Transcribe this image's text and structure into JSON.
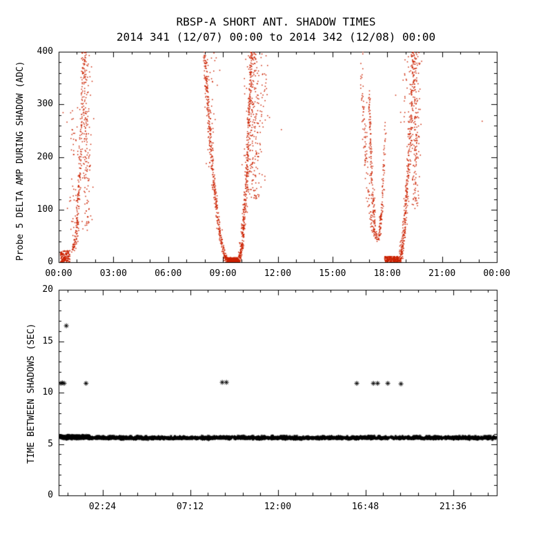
{
  "header": {
    "title": "RBSP-A SHORT ANT. SHADOW TIMES",
    "subtitle": "2014 341 (12/07) 00:00 to 2014 342 (12/08) 00:00"
  },
  "colors": {
    "background": "#ffffff",
    "axis": "#000000",
    "text": "#000000",
    "point_red": "#cc2200",
    "point_black": "#000000"
  },
  "chart_data": [
    {
      "type": "scatter",
      "panel": "top",
      "ylabel": "Probe 5 DELTA AMP DURING SHADOW (ADC)",
      "xlabel": "",
      "xlim": [
        0,
        24
      ],
      "ylim": [
        0,
        400
      ],
      "x_major": [
        0,
        3,
        6,
        9,
        12,
        15,
        18,
        21,
        24
      ],
      "x_labels": [
        "00:00",
        "03:00",
        "06:00",
        "09:00",
        "12:00",
        "15:00",
        "18:00",
        "21:00",
        "00:00"
      ],
      "x_minor_step": 1,
      "y_major": [
        0,
        100,
        200,
        300,
        400
      ],
      "y_labels": [
        "0",
        "100",
        "200",
        "300",
        "400"
      ],
      "y_minor_step": 20,
      "marker": "dot",
      "marker_color": "#cc2200",
      "clusters": [
        {
          "kind": "blob",
          "t": [
            0.1,
            0.62
          ],
          "v": [
            0,
            22
          ],
          "n": 150
        },
        {
          "kind": "column",
          "t": 0.8,
          "sd": 0.18,
          "v": [
            40,
            300
          ],
          "n": 45
        },
        {
          "kind": "branch",
          "tA": 0.78,
          "tB": 1.38,
          "vA": 25,
          "vB": 400,
          "jit": 0.05,
          "n": 220
        },
        {
          "kind": "column",
          "t": 1.52,
          "sd": 0.13,
          "v": [
            60,
            400
          ],
          "n": 170
        },
        {
          "kind": "column",
          "t": 8.32,
          "sd": 0.15,
          "v": [
            180,
            400
          ],
          "n": 55
        },
        {
          "kind": "branch",
          "tA": 9.35,
          "tB": 7.98,
          "vA": 0,
          "vB": 400,
          "jit": 0.045,
          "n": 390
        },
        {
          "kind": "blob",
          "t": [
            9.22,
            9.85
          ],
          "v": [
            0,
            9
          ],
          "n": 240
        },
        {
          "kind": "branch",
          "tA": 9.82,
          "tB": 10.55,
          "vA": 0,
          "vB": 400,
          "jit": 0.05,
          "n": 390
        },
        {
          "kind": "column",
          "t": 10.72,
          "sd": 0.22,
          "v": [
            120,
            400
          ],
          "n": 230
        },
        {
          "kind": "column",
          "t": 11.15,
          "sd": 0.25,
          "v": [
            240,
            400
          ],
          "n": 35
        },
        {
          "kind": "branch",
          "tA": 17.35,
          "tB": 16.55,
          "vA": 55,
          "vB": 400,
          "jit": 0.07,
          "n": 120
        },
        {
          "kind": "branch",
          "tA": 17.45,
          "tB": 17.0,
          "vA": 45,
          "vB": 320,
          "jit": 0.035,
          "n": 150
        },
        {
          "kind": "branch",
          "tA": 17.5,
          "tB": 17.88,
          "vA": 45,
          "vB": 260,
          "jit": 0.035,
          "n": 110
        },
        {
          "kind": "blob",
          "t": [
            17.85,
            18.62
          ],
          "v": [
            0,
            11
          ],
          "n": 210
        },
        {
          "kind": "branch",
          "tA": 18.6,
          "tB": 19.45,
          "vA": 0,
          "vB": 400,
          "jit": 0.06,
          "n": 340
        },
        {
          "kind": "column",
          "t": 19.55,
          "sd": 0.12,
          "v": [
            100,
            400
          ],
          "n": 180
        },
        {
          "kind": "column",
          "t": 19.1,
          "sd": 0.3,
          "v": [
            250,
            400
          ],
          "n": 40
        }
      ],
      "lone_points": [
        [
          12.2,
          252
        ],
        [
          23.2,
          268
        ]
      ]
    },
    {
      "type": "scatter",
      "panel": "bottom",
      "ylabel": "TIME BETWEEN SHADOWS (SEC)",
      "xlabel": "",
      "xlim": [
        0,
        24
      ],
      "ylim": [
        0,
        20
      ],
      "x_major": [
        2.4,
        7.2,
        12,
        16.8,
        21.6
      ],
      "x_labels": [
        "02:24",
        "07:12",
        "12:00",
        "16:48",
        "21:36"
      ],
      "x_minor_step": 0.96,
      "y_major": [
        0,
        5,
        10,
        15,
        20
      ],
      "y_labels": [
        "0",
        "5",
        "10",
        "15",
        "20"
      ],
      "y_minor_step": 1,
      "marker": "asterisk",
      "marker_color": "#000000",
      "band": {
        "v": 5.58,
        "jitter": 0.05,
        "t": [
          0.05,
          23.97
        ],
        "n": 1600,
        "gaps": [
          [
            9.45,
            9.6
          ],
          [
            18.08,
            18.22
          ]
        ]
      },
      "extra_clusters": [
        {
          "kind": "blob",
          "t": [
            0.05,
            23.97
          ],
          "v": [
            5.64,
            5.78
          ],
          "n": 260
        },
        {
          "kind": "blob",
          "t": [
            0.1,
            1.7
          ],
          "v": [
            5.68,
            5.85
          ],
          "n": 70
        }
      ],
      "outliers": [
        [
          0.12,
          10.9
        ],
        [
          0.2,
          10.95
        ],
        [
          0.3,
          10.9
        ],
        [
          1.5,
          10.9
        ],
        [
          8.96,
          11.0
        ],
        [
          9.19,
          11.0
        ],
        [
          16.33,
          10.9
        ],
        [
          17.24,
          10.9
        ],
        [
          17.47,
          10.9
        ],
        [
          18.03,
          10.9
        ],
        [
          18.75,
          10.85
        ],
        [
          0.42,
          16.5
        ]
      ]
    }
  ]
}
